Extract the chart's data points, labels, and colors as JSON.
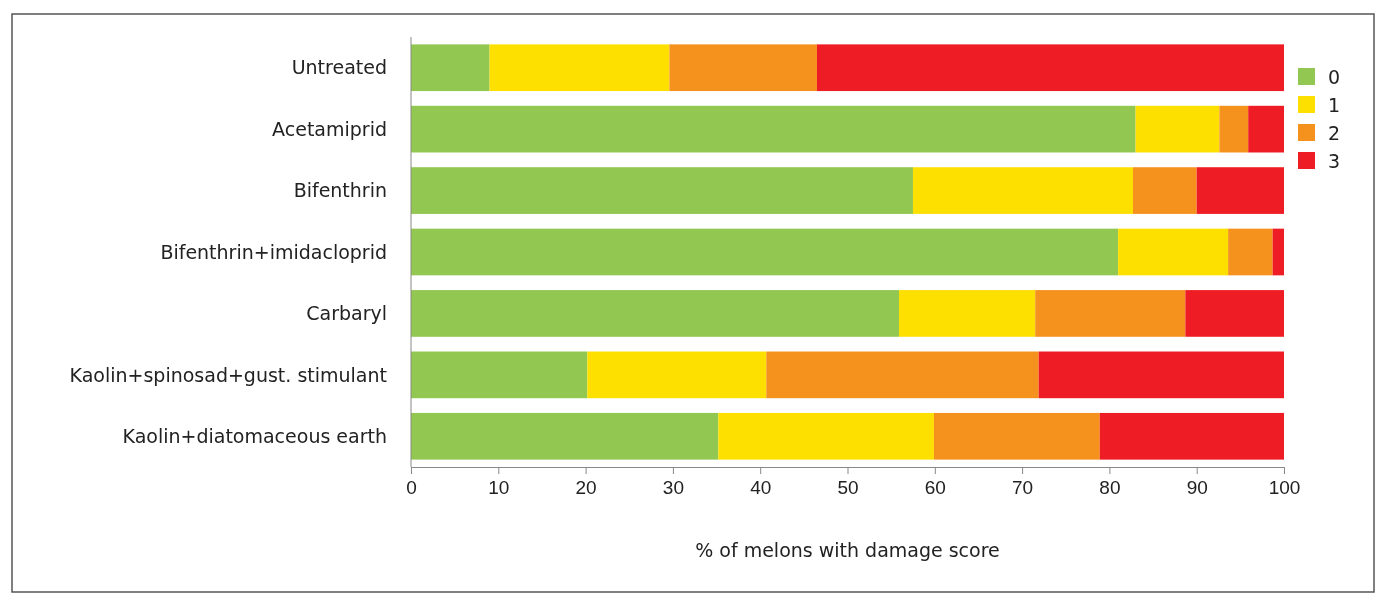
{
  "chart_data": {
    "type": "bar",
    "orientation": "horizontal",
    "stacked": true,
    "xlabel": "% of melons with damage score",
    "categories": [
      "Untreated",
      "Acetamiprid",
      "Bifenthrin",
      "Bifenthrin+imidacloprid",
      "Carbaryl",
      "Kaolin+spinosad+gust. stimulant",
      "Kaolin+diatomaceous earth"
    ],
    "series": [
      {
        "name": "0",
        "color": "#92c752",
        "values": [
          9.0,
          83.0,
          57.5,
          81.0,
          55.9,
          20.2,
          35.2
        ]
      },
      {
        "name": "1",
        "color": "#fde000",
        "values": [
          20.6,
          9.6,
          25.2,
          12.6,
          15.6,
          20.5,
          24.7
        ]
      },
      {
        "name": "2",
        "color": "#f5921e",
        "values": [
          16.9,
          3.3,
          7.3,
          5.1,
          17.2,
          31.2,
          19.0
        ]
      },
      {
        "name": "3",
        "color": "#ee1c24",
        "values": [
          53.5,
          4.1,
          10.0,
          1.3,
          11.3,
          28.1,
          21.1
        ]
      }
    ],
    "xlim": [
      0,
      100
    ],
    "xticks": [
      0,
      10,
      20,
      30,
      40,
      50,
      60,
      70,
      80,
      90,
      100
    ],
    "grid": false,
    "legend": "top right"
  }
}
